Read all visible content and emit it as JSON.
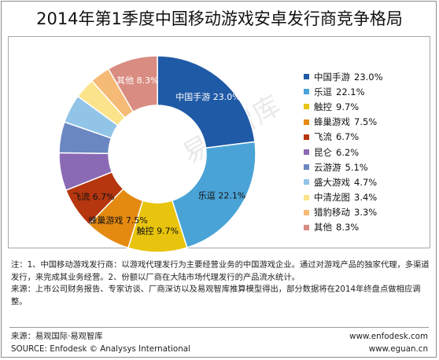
{
  "title": "2014年第1季度中国移动游戏安卓发行商竞争格局",
  "chart_data": {
    "type": "pie",
    "subtype": "donut",
    "title": "2014年第1季度中国移动游戏安卓发行商竞争格局",
    "unit": "%",
    "legend_position": "right",
    "watermark": "易观智库",
    "categories": [
      "中国手游",
      "乐逗",
      "触控",
      "蜂巢游戏",
      "飞流",
      "昆仑",
      "云游游",
      "盛大游戏",
      "中清龙图",
      "猎豹移动",
      "其他"
    ],
    "values": [
      23.0,
      22.1,
      9.7,
      7.5,
      6.7,
      6.2,
      5.1,
      4.7,
      3.4,
      3.3,
      8.3
    ],
    "value_labels": [
      "23.0%",
      "22.1%",
      "9.7%",
      "7.5%",
      "6.7%",
      "6.2%",
      "5.1%",
      "4.7%",
      "3.4%",
      "3.3%",
      "8.3%"
    ],
    "colors": [
      "#1f5aa6",
      "#4aa3d6",
      "#e8c40e",
      "#e58a11",
      "#b5360f",
      "#8a6ab4",
      "#6a87c2",
      "#92c4e8",
      "#fbe38c",
      "#f5ba76",
      "#d98c81"
    ],
    "slice_labels_shown": [
      0,
      1,
      2,
      3,
      4,
      10
    ]
  },
  "notes": {
    "line1": "注：1、中国移动游戏发行商：以游戏代理发行为主要经营业务的中国游戏企业。通过对游戏产品的独家代理，多渠道发行，来完成其业务经营。2、份额以厂商在大陆市场代理发行的产品流水统计。",
    "line2": "来源：上市公司财务报告、专家访谈、厂商深访以及易观智库推算模型得出，部分数据将在2014年终盘点做相应调整。"
  },
  "source": {
    "cn": "来源：易观国际·易观智库",
    "en": "SOURCE: Enfodesk © Analysys International",
    "url1": "www.enfodesk.com",
    "url2": "www.eguan.cn"
  }
}
